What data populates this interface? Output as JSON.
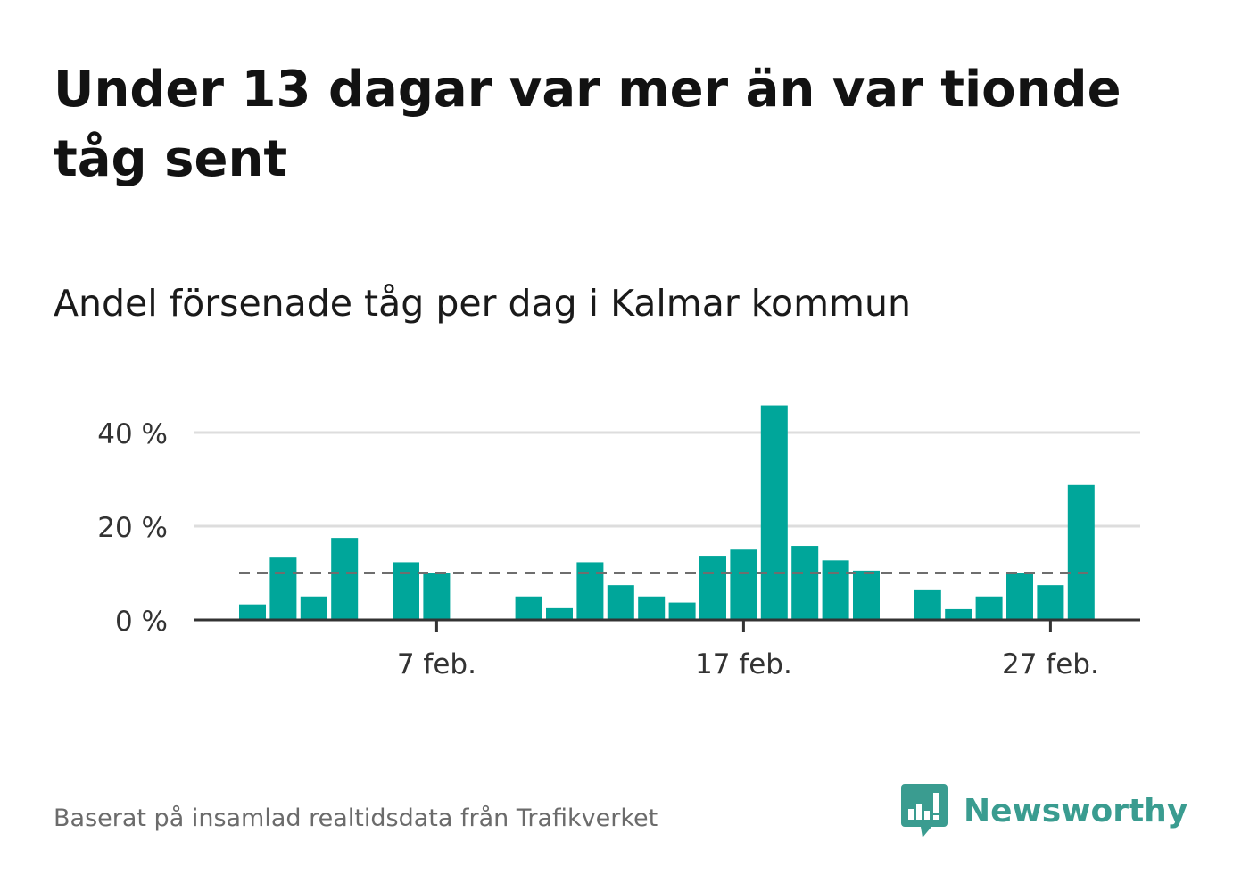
{
  "header": {
    "title": "Under 13 dagar var mer än var tionde tåg sent",
    "subtitle": "Andel försenade tåg per dag i Kalmar kommun"
  },
  "footer": {
    "source": "Baserat på insamlad realtidsdata från Trafikverket",
    "brand": "Newsworthy"
  },
  "colors": {
    "bar": "#00a69a",
    "grid": "#dddddd",
    "reference_line": "#6e6e6e",
    "axis": "#333333",
    "brand": "#3a9c90"
  },
  "chart_data": {
    "type": "bar",
    "x": [
      "1 feb.",
      "2 feb.",
      "3 feb.",
      "4 feb.",
      "5 feb.",
      "6 feb.",
      "7 feb.",
      "8 feb.",
      "9 feb.",
      "10 feb.",
      "11 feb.",
      "12 feb.",
      "13 feb.",
      "14 feb.",
      "15 feb.",
      "16 feb.",
      "17 feb.",
      "18 feb.",
      "19 feb.",
      "20 feb.",
      "21 feb.",
      "22 feb.",
      "23 feb.",
      "24 feb.",
      "25 feb.",
      "26 feb.",
      "27 feb.",
      "28 feb."
    ],
    "values": [
      3.3,
      13.3,
      5,
      17.5,
      null,
      12.3,
      10,
      null,
      null,
      5,
      2.5,
      12.3,
      7.4,
      5,
      3.7,
      13.7,
      15,
      45.8,
      15.8,
      12.7,
      10.5,
      null,
      6.5,
      2.3,
      5,
      10,
      7.4,
      28.8
    ],
    "unit": "%",
    "reference_value": 10,
    "yticks": [
      0,
      20,
      40
    ],
    "ytick_labels": [
      "0 %",
      "20 %",
      "40 %"
    ],
    "xticks": [
      "7 feb.",
      "17 feb.",
      "27 feb."
    ],
    "ylim": [
      0,
      47
    ],
    "grid": true,
    "legend": "none"
  }
}
